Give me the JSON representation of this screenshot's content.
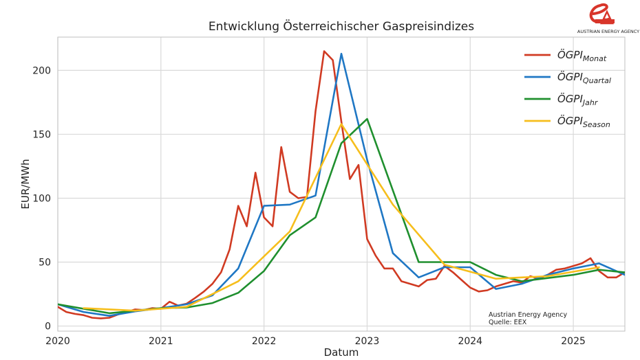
{
  "chart_data": {
    "type": "line",
    "title": "Entwicklung Österreichischer Gaspreisindizes",
    "xlabel": "Datum",
    "ylabel": "EUR/MWh",
    "xlim": [
      2020.0,
      2025.5
    ],
    "ylim": [
      -4,
      226
    ],
    "x_ticks": [
      2020,
      2021,
      2022,
      2023,
      2024,
      2025
    ],
    "x_tick_labels": [
      "2020",
      "2021",
      "2022",
      "2023",
      "2024",
      "2025"
    ],
    "y_ticks": [
      0,
      50,
      100,
      150,
      200
    ],
    "y_tick_labels": [
      "0",
      "50",
      "100",
      "150",
      "200"
    ],
    "grid": true,
    "legend_position": "top-right",
    "series": [
      {
        "name": "ÖGPI",
        "subscript": "Monat",
        "color": "#d03a22",
        "x": [
          2020.0,
          2020.083,
          2020.167,
          2020.25,
          2020.333,
          2020.417,
          2020.5,
          2020.583,
          2020.667,
          2020.75,
          2020.833,
          2020.917,
          2021.0,
          2021.083,
          2021.167,
          2021.25,
          2021.333,
          2021.417,
          2021.5,
          2021.583,
          2021.667,
          2021.75,
          2021.833,
          2021.917,
          2022.0,
          2022.083,
          2022.167,
          2022.25,
          2022.333,
          2022.417,
          2022.5,
          2022.583,
          2022.667,
          2022.75,
          2022.833,
          2022.917,
          2023.0,
          2023.083,
          2023.167,
          2023.25,
          2023.333,
          2023.417,
          2023.5,
          2023.583,
          2023.667,
          2023.75,
          2023.833,
          2023.917,
          2024.0,
          2024.083,
          2024.167,
          2024.25,
          2024.333,
          2024.417,
          2024.5,
          2024.583,
          2024.667,
          2024.75,
          2024.833,
          2024.917,
          2025.0,
          2025.083,
          2025.167,
          2025.25,
          2025.333,
          2025.417,
          2025.5
        ],
        "y": [
          15,
          11,
          9.5,
          8.5,
          6.5,
          6,
          6.5,
          9,
          11,
          13,
          12.5,
          14,
          13.5,
          19,
          16,
          17.5,
          22,
          27,
          33,
          42,
          60,
          94,
          78,
          120,
          85,
          78,
          140,
          105,
          100,
          101,
          168,
          215,
          208,
          160,
          115,
          126,
          68,
          55,
          45,
          45,
          35,
          33,
          31,
          36,
          37,
          47,
          42,
          36,
          30,
          27,
          28,
          31,
          33,
          35,
          34,
          39,
          37,
          40,
          44,
          45,
          47,
          49,
          53,
          43,
          38,
          38,
          42
        ]
      },
      {
        "name": "ÖGPI",
        "subscript": "Quartal",
        "color": "#1f77c4",
        "x": [
          2020.0,
          2020.25,
          2020.5,
          2020.75,
          2021.0,
          2021.25,
          2021.5,
          2021.75,
          2022.0,
          2022.25,
          2022.5,
          2022.75,
          2023.0,
          2023.25,
          2023.5,
          2023.75,
          2024.0,
          2024.25,
          2024.5,
          2024.75,
          2025.0,
          2025.25,
          2025.5
        ],
        "y": [
          17,
          11,
          8,
          11.5,
          14,
          17,
          24,
          45,
          94,
          95,
          102,
          213,
          130,
          57,
          38,
          46,
          46,
          29,
          33,
          40,
          45,
          49,
          40
        ]
      },
      {
        "name": "ÖGPI",
        "subscript": "Jahr",
        "color": "#1f8f2e",
        "x": [
          2020.0,
          2020.5,
          2021.0,
          2021.25,
          2021.5,
          2021.75,
          2022.0,
          2022.25,
          2022.5,
          2022.75,
          2023.0,
          2023.5,
          2024.0,
          2024.25,
          2024.5,
          2025.0,
          2025.25,
          2025.5
        ],
        "y": [
          17,
          10,
          14,
          14.5,
          18,
          26,
          43,
          71,
          85,
          143,
          162,
          50,
          50,
          40,
          35,
          40,
          44,
          42
        ]
      },
      {
        "name": "ÖGPI",
        "subscript": "Season",
        "color": "#f6be1c",
        "x": [
          2020.25,
          2020.75,
          2021.25,
          2021.75,
          2022.25,
          2022.75,
          2023.25,
          2023.75,
          2024.25,
          2024.75,
          2025.25
        ],
        "y": [
          14,
          12,
          15,
          35,
          74,
          158,
          95,
          48,
          37,
          39,
          46
        ]
      }
    ],
    "annotation": [
      "Austrian Energy Agency",
      "Quelle: EEX"
    ],
    "logo_text": "AUSTRIAN ENERGY AGENCY"
  }
}
